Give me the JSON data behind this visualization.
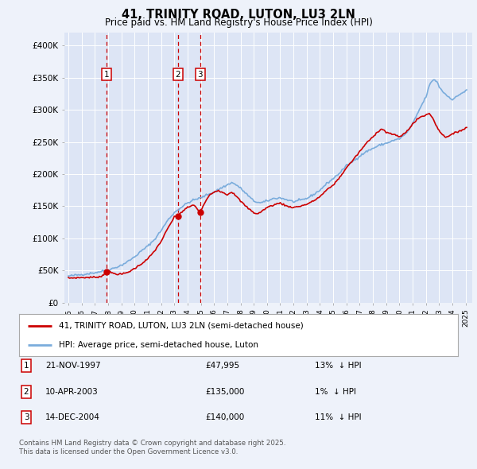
{
  "title": "41, TRINITY ROAD, LUTON, LU3 2LN",
  "subtitle": "Price paid vs. HM Land Registry's House Price Index (HPI)",
  "background_color": "#eef2fa",
  "plot_bg_color": "#dde5f5",
  "grid_color": "#ffffff",
  "ylim": [
    0,
    420000
  ],
  "yticks": [
    0,
    50000,
    100000,
    150000,
    200000,
    250000,
    300000,
    350000,
    400000
  ],
  "ytick_labels": [
    "£0",
    "£50K",
    "£100K",
    "£150K",
    "£200K",
    "£250K",
    "£300K",
    "£350K",
    "£400K"
  ],
  "xlim_start": 1994.7,
  "xlim_end": 2025.5,
  "red_line_color": "#cc0000",
  "blue_line_color": "#7aacdc",
  "transaction_line_color": "#cc0000",
  "marker_color": "#cc0000",
  "transactions": [
    {
      "num": 1,
      "date": "21-NOV-1997",
      "year": 1997.89,
      "price": 47995,
      "pct": "13%",
      "dir": "↓"
    },
    {
      "num": 2,
      "date": "10-APR-2003",
      "year": 2003.27,
      "price": 135000,
      "pct": "1%",
      "dir": "↓"
    },
    {
      "num": 3,
      "date": "14-DEC-2004",
      "year": 2004.95,
      "price": 140000,
      "pct": "11%",
      "dir": "↓"
    }
  ],
  "legend_label_red": "41, TRINITY ROAD, LUTON, LU3 2LN (semi-detached house)",
  "legend_label_blue": "HPI: Average price, semi-detached house, Luton",
  "footer": "Contains HM Land Registry data © Crown copyright and database right 2025.\nThis data is licensed under the Open Government Licence v3.0.",
  "xtick_years": [
    1995,
    1996,
    1997,
    1998,
    1999,
    2000,
    2001,
    2002,
    2003,
    2004,
    2005,
    2006,
    2007,
    2008,
    2009,
    2010,
    2011,
    2012,
    2013,
    2014,
    2015,
    2016,
    2017,
    2018,
    2019,
    2020,
    2021,
    2022,
    2023,
    2024,
    2025
  ]
}
